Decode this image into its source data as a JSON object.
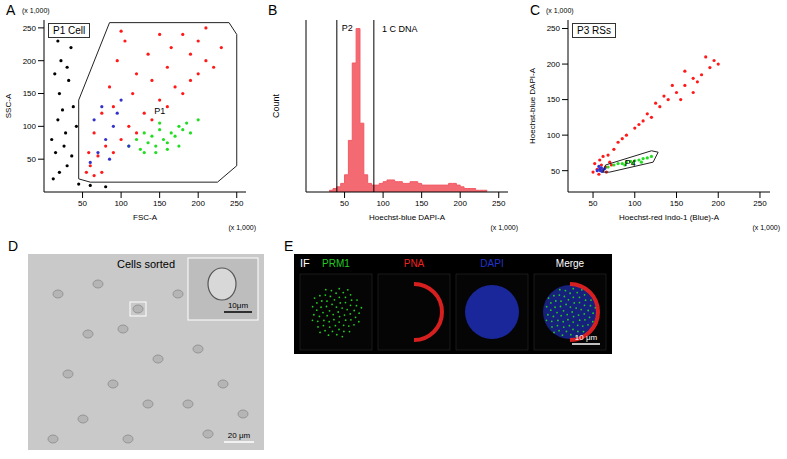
{
  "chart_data": [
    {
      "panel": "A",
      "type": "scatter",
      "title": "P1 Cell",
      "x_label": "FSC-A",
      "y_label": "SSC-A",
      "x_scale_note": "(x 1,000)",
      "y_scale_note": "(x 1,000)",
      "xlim": [
        0,
        262
      ],
      "ylim": [
        0,
        262
      ],
      "xticks": [
        50,
        100,
        150,
        200,
        250
      ],
      "yticks": [
        50,
        100,
        150,
        200,
        250
      ],
      "series": [
        {
          "color": "#000000",
          "points": [
            [
              12,
              20
            ],
            [
              15,
              60
            ],
            [
              18,
              110
            ],
            [
              20,
              150
            ],
            [
              22,
              200
            ],
            [
              25,
              240
            ],
            [
              28,
              90
            ],
            [
              30,
              40
            ],
            [
              32,
              170
            ],
            [
              35,
              220
            ],
            [
              38,
              130
            ],
            [
              40,
              255
            ],
            [
              20,
              30
            ],
            [
              10,
              80
            ],
            [
              14,
              180
            ],
            [
              26,
              70
            ],
            [
              33,
              250
            ],
            [
              45,
              12
            ],
            [
              60,
              10
            ],
            [
              80,
              8
            ],
            [
              42,
              100
            ],
            [
              30,
              190
            ],
            [
              18,
              230
            ],
            [
              36,
              55
            ],
            [
              24,
              125
            ]
          ]
        },
        {
          "color": "#ff1a1a",
          "points": [
            [
              60,
              40
            ],
            [
              70,
              55
            ],
            [
              80,
              70
            ],
            [
              90,
              60
            ],
            [
              100,
              80
            ],
            [
              110,
              100
            ],
            [
              120,
              90
            ],
            [
              130,
              120
            ],
            [
              140,
              110
            ],
            [
              150,
              140
            ],
            [
              160,
              130
            ],
            [
              170,
              160
            ],
            [
              180,
              150
            ],
            [
              190,
              170
            ],
            [
              200,
              180
            ],
            [
              210,
              200
            ],
            [
              220,
              190
            ],
            [
              75,
              120
            ],
            [
              85,
              160
            ],
            [
              95,
              200
            ],
            [
              105,
              230
            ],
            [
              120,
              180
            ],
            [
              135,
              210
            ],
            [
              150,
              240
            ],
            [
              165,
              220
            ],
            [
              180,
              240
            ],
            [
              200,
              230
            ],
            [
              65,
              90
            ],
            [
              90,
              130
            ],
            [
              115,
              150
            ],
            [
              140,
              170
            ],
            [
              160,
              190
            ],
            [
              190,
              210
            ],
            [
              55,
              30
            ],
            [
              65,
              25
            ],
            [
              75,
              30
            ],
            [
              58,
              60
            ],
            [
              230,
              220
            ],
            [
              210,
              250
            ],
            [
              100,
              245
            ]
          ]
        },
        {
          "color": "#22dd22",
          "points": [
            [
              110,
              70
            ],
            [
              120,
              80
            ],
            [
              125,
              65
            ],
            [
              130,
              90
            ],
            [
              135,
              75
            ],
            [
              140,
              85
            ],
            [
              145,
              70
            ],
            [
              150,
              95
            ],
            [
              155,
              80
            ],
            [
              160,
              75
            ],
            [
              165,
              90
            ],
            [
              170,
              85
            ],
            [
              175,
              100
            ],
            [
              180,
              95
            ],
            [
              185,
              105
            ],
            [
              190,
              90
            ],
            [
              145,
              60
            ],
            [
              160,
              65
            ],
            [
              130,
              60
            ],
            [
              200,
              110
            ],
            [
              175,
              70
            ],
            [
              150,
              105
            ]
          ]
        },
        {
          "color": "#3333cc",
          "points": [
            [
              60,
              45
            ],
            [
              70,
              60
            ],
            [
              80,
              80
            ],
            [
              90,
              100
            ],
            [
              95,
              120
            ],
            [
              75,
              130
            ],
            [
              65,
              110
            ],
            [
              100,
              140
            ],
            [
              85,
              50
            ],
            [
              110,
              70
            ]
          ]
        }
      ],
      "gates": [
        {
          "name": "P1",
          "points": [
            [
              45,
              20
            ],
            [
              45,
              140
            ],
            [
              85,
              258
            ],
            [
              240,
              258
            ],
            [
              250,
              240
            ],
            [
              250,
              40
            ],
            [
              225,
              15
            ],
            [
              60,
              15
            ]
          ]
        }
      ]
    },
    {
      "panel": "B",
      "type": "histogram",
      "x_label": "Hoechst-blue DAPI-A",
      "y_label": "Count",
      "x_scale_note": "(x 1,000)",
      "xlim": [
        0,
        262
      ],
      "ylim": [
        0,
        100
      ],
      "xticks": [
        50,
        100,
        150,
        200,
        250
      ],
      "tick_labels": "x",
      "color": "#f25a64",
      "bins": [
        30,
        35,
        40,
        45,
        50,
        55,
        60,
        65,
        70,
        75,
        80,
        85,
        90,
        95,
        100,
        105,
        110,
        115,
        120,
        125,
        130,
        135,
        140,
        145,
        150,
        155,
        160,
        165,
        170,
        175,
        180,
        185,
        190,
        195,
        200,
        205,
        210,
        215,
        220,
        225,
        230,
        235
      ],
      "counts": [
        1,
        2,
        3,
        5,
        10,
        30,
        75,
        95,
        40,
        10,
        5,
        4,
        4,
        5,
        6,
        7,
        7,
        6,
        6,
        5,
        5,
        6,
        6,
        5,
        4,
        4,
        4,
        4,
        4,
        4,
        4,
        5,
        5,
        4,
        3,
        2,
        2,
        2,
        1,
        1,
        1
      ],
      "gates": [
        {
          "name": "P2",
          "range": [
            40,
            88
          ]
        }
      ],
      "annotations": [
        {
          "text": "1 C DNA",
          "x": 92,
          "y": 95
        }
      ]
    },
    {
      "panel": "C",
      "type": "scatter",
      "title": "P3 RSs",
      "x_label": "Hoechst-red Indo-1 (Blue)-A",
      "y_label": "Hoechst-blue DAPI-A",
      "x_scale_note": "(x 1,000)",
      "y_scale_note": "(x 1,000)",
      "xlim": [
        20,
        262
      ],
      "ylim": [
        20,
        262
      ],
      "xticks": [
        50,
        100,
        150,
        200,
        250
      ],
      "yticks": [
        50,
        100,
        150,
        200,
        250
      ],
      "series": [
        {
          "color": "#ff1a1a",
          "points": [
            [
              50,
              48
            ],
            [
              55,
              52
            ],
            [
              60,
              58
            ],
            [
              65,
              55
            ],
            [
              70,
              62
            ],
            [
              58,
              65
            ],
            [
              62,
              70
            ],
            [
              68,
              72
            ],
            [
              75,
              80
            ],
            [
              80,
              90
            ],
            [
              90,
              100
            ],
            [
              100,
              110
            ],
            [
              110,
              120
            ],
            [
              115,
              130
            ],
            [
              120,
              125
            ],
            [
              130,
              140
            ],
            [
              140,
              150
            ],
            [
              150,
              160
            ],
            [
              155,
              150
            ],
            [
              160,
              170
            ],
            [
              170,
              180
            ],
            [
              175,
              175
            ],
            [
              180,
              185
            ],
            [
              190,
              195
            ],
            [
              195,
              205
            ],
            [
              200,
              200
            ],
            [
              170,
              160
            ],
            [
              145,
              170
            ],
            [
              125,
              145
            ],
            [
              105,
              115
            ],
            [
              85,
              95
            ],
            [
              185,
              210
            ],
            [
              160,
              190
            ],
            [
              135,
              155
            ],
            [
              52,
              60
            ],
            [
              57,
              45
            ],
            [
              66,
              48
            ],
            [
              72,
              58
            ]
          ]
        },
        {
          "color": "#3333cc",
          "points": [
            [
              55,
              50
            ],
            [
              58,
              52
            ],
            [
              60,
              54
            ],
            [
              62,
              51
            ],
            [
              57,
              56
            ],
            [
              61,
              49
            ],
            [
              64,
              53
            ],
            [
              59,
              50
            ]
          ]
        },
        {
          "color": "#22dd22",
          "points": [
            [
              68,
              55
            ],
            [
              75,
              58
            ],
            [
              80,
              60
            ],
            [
              85,
              60
            ],
            [
              90,
              62
            ],
            [
              95,
              63
            ],
            [
              100,
              64
            ],
            [
              105,
              65
            ],
            [
              110,
              67
            ],
            [
              115,
              68
            ],
            [
              120,
              70
            ],
            [
              88,
              58
            ],
            [
              98,
              60
            ],
            [
              108,
              62
            ]
          ]
        }
      ],
      "gates": [
        {
          "name": "P4",
          "points": [
            [
              62,
              48
            ],
            [
              65,
              58
            ],
            [
              120,
              78
            ],
            [
              128,
              76
            ],
            [
              122,
              62
            ],
            [
              70,
              48
            ]
          ]
        }
      ]
    }
  ],
  "images": [
    {
      "panel": "D",
      "title": "Cells sorted",
      "scale_bar": "20 μm",
      "inset_scale_bar": "10μm"
    },
    {
      "panel": "E",
      "method": "IF",
      "channels": [
        {
          "label": "PRM1",
          "color": "#22cc22"
        },
        {
          "label": "PNA",
          "color": "#ee2222"
        },
        {
          "label": "DAPI",
          "color": "#2233cc"
        }
      ],
      "merge_label": "Merge",
      "scale_bar": "10 μm"
    }
  ]
}
